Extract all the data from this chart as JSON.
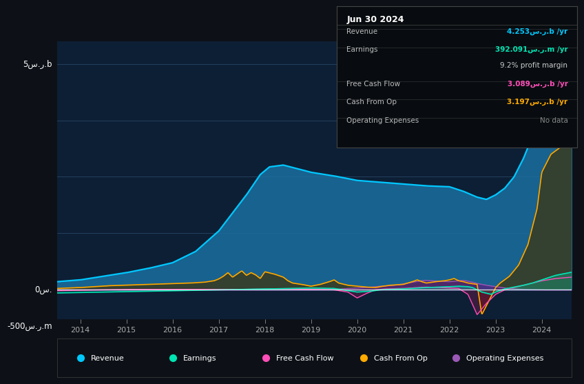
{
  "bg_color": "#0d1117",
  "plot_bg_color": "#0d1f35",
  "grid_color": "#1e3a5a",
  "title_date": "Jun 30 2024",
  "info_rows": [
    {
      "label": "Revenue",
      "value": "4.253س.ر.b /yr",
      "color": "#00c8ff"
    },
    {
      "label": "Earnings",
      "value": "392.091س.ر.m /yr",
      "color": "#00e5b4"
    },
    {
      "label": "",
      "value": "9.2% profit margin",
      "color": "#cccccc"
    },
    {
      "label": "Free Cash Flow",
      "value": "3.089س.ر.b /yr",
      "color": "#ff4eb8"
    },
    {
      "label": "Cash From Op",
      "value": "3.197س.ر.b /yr",
      "color": "#ffaa00"
    },
    {
      "label": "Operating Expenses",
      "value": "No data",
      "color": "#888888"
    }
  ],
  "ylabel_top": "5س.ر.b",
  "ylabel_zero": "0س.",
  "ylabel_bottom": "-500س.ر.m",
  "legend": [
    {
      "label": "Revenue",
      "color": "#00c8ff"
    },
    {
      "label": "Earnings",
      "color": "#00e5b4"
    },
    {
      "label": "Free Cash Flow",
      "color": "#ff4eb8"
    },
    {
      "label": "Cash From Op",
      "color": "#ffaa00"
    },
    {
      "label": "Operating Expenses",
      "color": "#9b59b6"
    }
  ],
  "ylim_min": -0.65,
  "ylim_max": 5.5,
  "xmin": 2013.5,
  "xmax": 2024.65
}
